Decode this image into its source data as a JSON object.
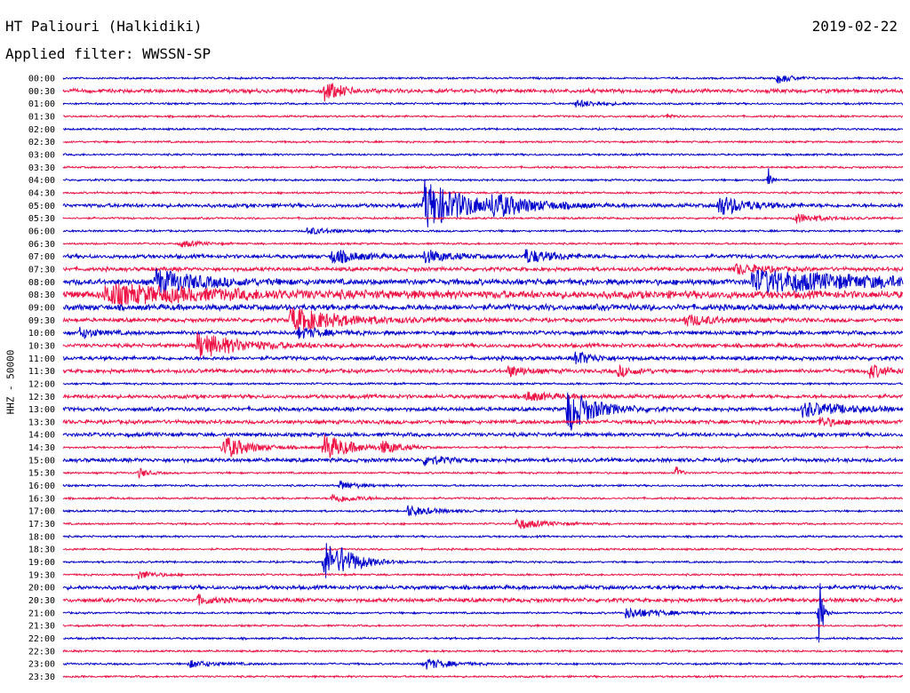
{
  "header": {
    "station": "HT Paliouri (Halkidiki)",
    "date": "2019-02-22",
    "filter": "Applied filter: WWSSN-SP"
  },
  "chart_data": {
    "type": "line",
    "title": "",
    "ylabel": "HHZ - 50000",
    "xlabel": "",
    "grid": false,
    "colors": [
      "#0000cc",
      "#ee1144"
    ],
    "row_labels": [
      "00:00",
      "00:30",
      "01:00",
      "01:30",
      "02:00",
      "02:30",
      "03:00",
      "03:30",
      "04:00",
      "04:30",
      "05:00",
      "05:30",
      "06:00",
      "06:30",
      "07:00",
      "07:30",
      "08:00",
      "08:30",
      "09:00",
      "09:30",
      "10:00",
      "10:30",
      "11:00",
      "11:30",
      "12:00",
      "12:30",
      "13:00",
      "13:30",
      "14:00",
      "14:30",
      "15:00",
      "15:30",
      "16:00",
      "16:30",
      "17:00",
      "17:30",
      "18:00",
      "18:30",
      "19:00",
      "19:30",
      "20:00",
      "20:30",
      "21:00",
      "21:30",
      "22:00",
      "22:30",
      "23:00",
      "23:30"
    ],
    "noise_level": [
      1,
      2,
      1,
      1,
      1,
      1,
      1,
      1,
      1,
      1,
      2,
      1,
      1,
      1,
      2,
      2,
      3,
      4,
      3,
      2,
      2,
      2,
      2,
      2,
      1,
      2,
      2,
      2,
      2,
      1,
      2,
      1,
      1,
      1,
      1,
      1,
      1,
      1,
      1,
      1,
      2,
      2,
      1,
      1,
      1,
      1,
      1,
      1
    ],
    "events": [
      {
        "row": 0,
        "at": 0.85,
        "amp": 6,
        "dur": 0.015
      },
      {
        "row": 1,
        "at": 0.31,
        "amp": 12,
        "dur": 0.02
      },
      {
        "row": 2,
        "at": 0.61,
        "amp": 4,
        "dur": 0.03
      },
      {
        "row": 3,
        "at": 0.72,
        "amp": 4,
        "dur": 0.005
      },
      {
        "row": 8,
        "at": 0.84,
        "amp": 14,
        "dur": 0.003
      },
      {
        "row": 10,
        "at": 0.43,
        "amp": 28,
        "dur": 0.05
      },
      {
        "row": 10,
        "at": 0.51,
        "amp": 10,
        "dur": 0.04
      },
      {
        "row": 10,
        "at": 0.78,
        "amp": 12,
        "dur": 0.03
      },
      {
        "row": 11,
        "at": 0.87,
        "amp": 6,
        "dur": 0.03
      },
      {
        "row": 12,
        "at": 0.29,
        "amp": 4,
        "dur": 0.03
      },
      {
        "row": 13,
        "at": 0.14,
        "amp": 4,
        "dur": 0.02
      },
      {
        "row": 14,
        "at": 0.32,
        "amp": 8,
        "dur": 0.03
      },
      {
        "row": 14,
        "at": 0.43,
        "amp": 7,
        "dur": 0.03
      },
      {
        "row": 14,
        "at": 0.55,
        "amp": 8,
        "dur": 0.03
      },
      {
        "row": 15,
        "at": 0.8,
        "amp": 6,
        "dur": 0.03
      },
      {
        "row": 16,
        "at": 0.11,
        "amp": 14,
        "dur": 0.05
      },
      {
        "row": 16,
        "at": 0.82,
        "amp": 12,
        "dur": 0.15
      },
      {
        "row": 17,
        "at": 0.05,
        "amp": 10,
        "dur": 0.12
      },
      {
        "row": 19,
        "at": 0.27,
        "amp": 14,
        "dur": 0.06
      },
      {
        "row": 19,
        "at": 0.74,
        "amp": 6,
        "dur": 0.04
      },
      {
        "row": 20,
        "at": 0.02,
        "amp": 6,
        "dur": 0.02
      },
      {
        "row": 20,
        "at": 0.28,
        "amp": 6,
        "dur": 0.03
      },
      {
        "row": 21,
        "at": 0.16,
        "amp": 14,
        "dur": 0.05
      },
      {
        "row": 22,
        "at": 0.61,
        "amp": 8,
        "dur": 0.02
      },
      {
        "row": 23,
        "at": 0.53,
        "amp": 6,
        "dur": 0.02
      },
      {
        "row": 23,
        "at": 0.66,
        "amp": 6,
        "dur": 0.02
      },
      {
        "row": 23,
        "at": 0.96,
        "amp": 8,
        "dur": 0.02
      },
      {
        "row": 25,
        "at": 0.55,
        "amp": 5,
        "dur": 0.03
      },
      {
        "row": 26,
        "at": 0.6,
        "amp": 26,
        "dur": 0.03
      },
      {
        "row": 26,
        "at": 0.88,
        "amp": 8,
        "dur": 0.05
      },
      {
        "row": 27,
        "at": 0.9,
        "amp": 6,
        "dur": 0.02
      },
      {
        "row": 29,
        "at": 0.19,
        "amp": 14,
        "dur": 0.03
      },
      {
        "row": 29,
        "at": 0.31,
        "amp": 16,
        "dur": 0.03
      },
      {
        "row": 29,
        "at": 0.38,
        "amp": 7,
        "dur": 0.02
      },
      {
        "row": 30,
        "at": 0.43,
        "amp": 6,
        "dur": 0.02
      },
      {
        "row": 31,
        "at": 0.09,
        "amp": 6,
        "dur": 0.01
      },
      {
        "row": 31,
        "at": 0.73,
        "amp": 8,
        "dur": 0.005
      },
      {
        "row": 32,
        "at": 0.33,
        "amp": 5,
        "dur": 0.02
      },
      {
        "row": 33,
        "at": 0.32,
        "amp": 5,
        "dur": 0.03
      },
      {
        "row": 34,
        "at": 0.41,
        "amp": 6,
        "dur": 0.03
      },
      {
        "row": 35,
        "at": 0.54,
        "amp": 6,
        "dur": 0.03
      },
      {
        "row": 38,
        "at": 0.31,
        "amp": 26,
        "dur": 0.02
      },
      {
        "row": 38,
        "at": 0.33,
        "amp": 8,
        "dur": 0.03
      },
      {
        "row": 39,
        "at": 0.09,
        "amp": 5,
        "dur": 0.02
      },
      {
        "row": 41,
        "at": 0.16,
        "amp": 5,
        "dur": 0.02
      },
      {
        "row": 42,
        "at": 0.67,
        "amp": 6,
        "dur": 0.04
      },
      {
        "row": 42,
        "at": 0.9,
        "amp": 50,
        "dur": 0.004
      },
      {
        "row": 46,
        "at": 0.15,
        "amp": 4,
        "dur": 0.03
      },
      {
        "row": 46,
        "at": 0.43,
        "amp": 6,
        "dur": 0.03
      }
    ]
  }
}
